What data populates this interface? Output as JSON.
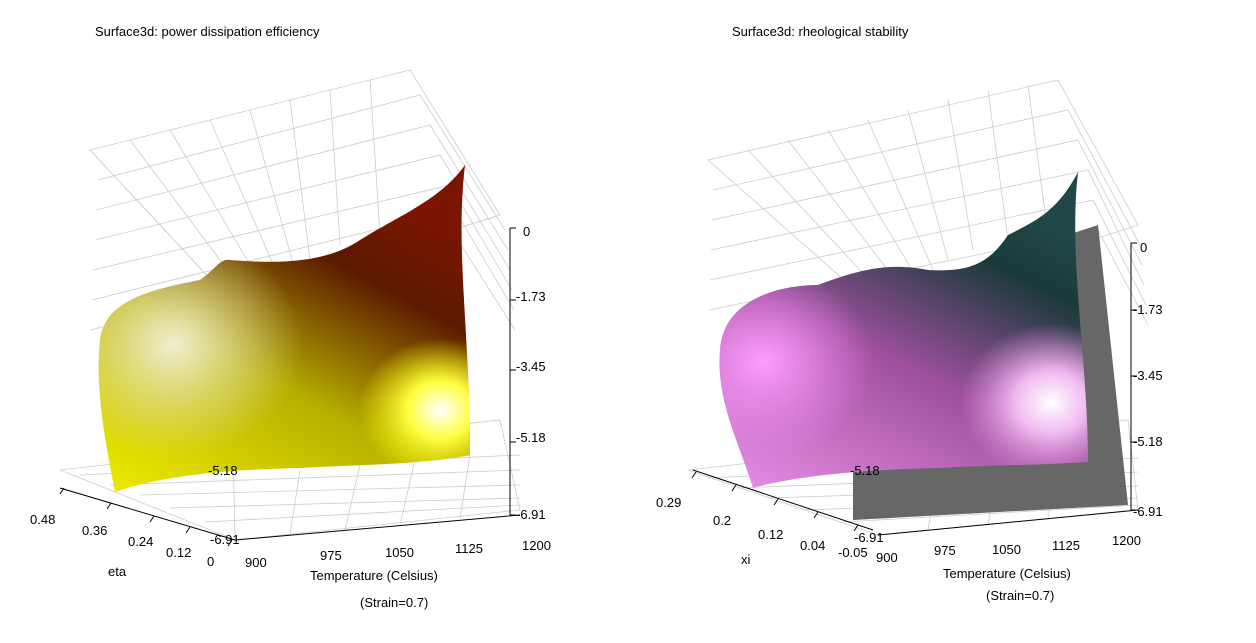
{
  "chart_data": [
    {
      "type": "surface3d",
      "title": "Surface3d: power dissipation efficiency",
      "xlabel": "Temperature (Celsius)",
      "xlabel_note": "(Strain=0.7)",
      "ylabel": "eta",
      "x_ticks": [
        "900",
        "975",
        "1050",
        "1125",
        "1200"
      ],
      "y_ticks": [
        "0.48",
        "0.36",
        "0.24",
        "0.12",
        "0"
      ],
      "z_ticks": [
        "0",
        "-1.73",
        "-3.45",
        "-5.18",
        "-6.91"
      ],
      "z_inner_ticks": [
        "-5.18",
        "-6.91"
      ],
      "xlim": [
        900,
        1200
      ],
      "zlim": [
        -6.91,
        0
      ],
      "colors": {
        "low": "#e8e6b8",
        "mid": "#c8c000",
        "high": "#6a0a00",
        "bright": "#ffff00"
      }
    },
    {
      "type": "surface3d",
      "title": "Surface3d: rheological stability",
      "xlabel": "Temperature (Celsius)",
      "xlabel_note": "(Strain=0.7)",
      "ylabel": "xi",
      "x_ticks": [
        "900",
        "975",
        "1050",
        "1125",
        "1200"
      ],
      "y_ticks": [
        "0.29",
        "0.2",
        "0.12",
        "0.04",
        "-0.05"
      ],
      "z_ticks": [
        "0",
        "-1.73",
        "-3.45",
        "-5.18",
        "-6.91"
      ],
      "z_inner_ticks": [
        "-5.18",
        "-6.91"
      ],
      "xlim": [
        900,
        1200
      ],
      "zlim": [
        -6.91,
        0
      ],
      "colors": {
        "low": "#f090f0",
        "mid": "#a050a0",
        "high": "#103838",
        "plane": "#5a5a5a"
      }
    }
  ]
}
